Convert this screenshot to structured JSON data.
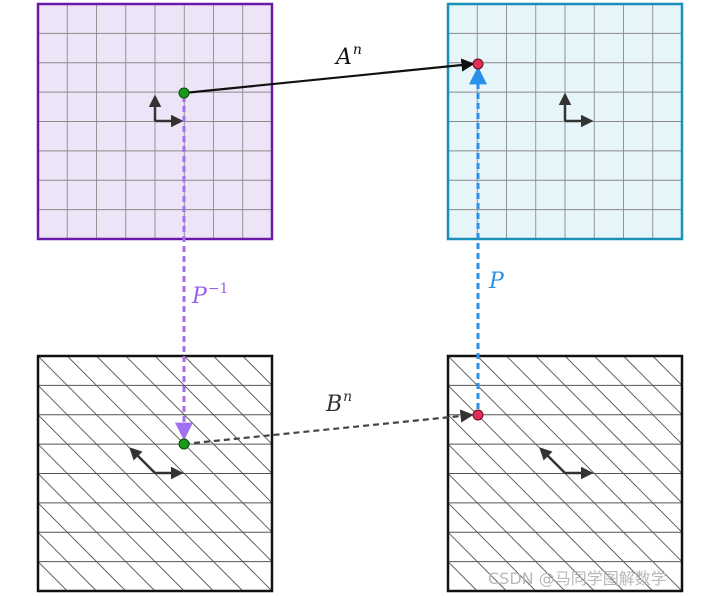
{
  "labels": {
    "top_arrow": {
      "base": "A",
      "exp": "n"
    },
    "bottom_arrow": {
      "base": "B",
      "exp": "n"
    },
    "left_arrow": {
      "base": "P",
      "exp": "−1"
    },
    "right_arrow": {
      "base": "P"
    }
  },
  "watermark": "CSDN @马同学图解数学",
  "colors": {
    "purple_square_fill": "#ede4f8",
    "purple_square_stroke": "#6a1aa8",
    "blue_square_fill": "#e6f5fa",
    "blue_square_stroke": "#1a90b8",
    "grid_line": "#8a8a8a",
    "hatch_line": "#555555",
    "purple_dashed": "#a070f0",
    "blue_dashed": "#2a90e8",
    "dark_dashed": "#444444",
    "green_point": "#1a9a1a",
    "red_point": "#e0305a",
    "purple_label": "#9a60e8",
    "blue_label": "#2a90e8"
  }
}
